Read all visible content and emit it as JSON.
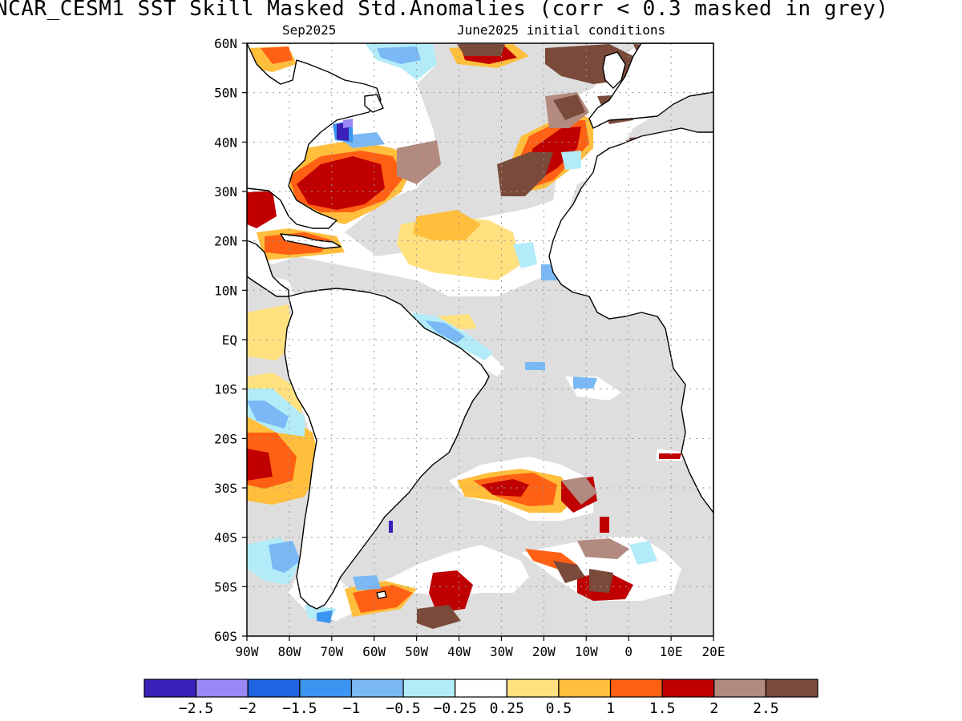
{
  "title": "NCAR_CESM1  SST Skill Masked Std.Anomalies (corr < 0.3 masked in grey)",
  "subtitle_left": "Sep2025",
  "subtitle_right": "June2025 initial conditions",
  "map": {
    "region": "Atlantic Ocean",
    "lon_range": [
      -90,
      20
    ],
    "lat_range": [
      -60,
      60
    ],
    "lat_labels": [
      "60N",
      "50N",
      "40N",
      "30N",
      "20N",
      "10N",
      "EQ",
      "10S",
      "20S",
      "30S",
      "40S",
      "50S",
      "60S"
    ],
    "lon_labels": [
      "90W",
      "80W",
      "70W",
      "60W",
      "50W",
      "40W",
      "30W",
      "20W",
      "10W",
      "0",
      "10E",
      "20E"
    ],
    "mask_color": "#dedede",
    "land_color": "#ffffff",
    "gridlines": "dotted"
  },
  "colorbar": {
    "colors": [
      "#3a1fb8",
      "#9b87f5",
      "#1f64e0",
      "#3c95f0",
      "#7ab9f5",
      "#b3ecf8",
      "#ffffff",
      "#ffe180",
      "#ffbe3c",
      "#ff6014",
      "#c00000",
      "#b28a80",
      "#7a4a3a"
    ],
    "labels": [
      "−2.5",
      "−2",
      "−1.5",
      "−1",
      "−0.5",
      "−0.25",
      "0.25",
      "0.5",
      "1",
      "1.5",
      "2",
      "2.5"
    ]
  }
}
